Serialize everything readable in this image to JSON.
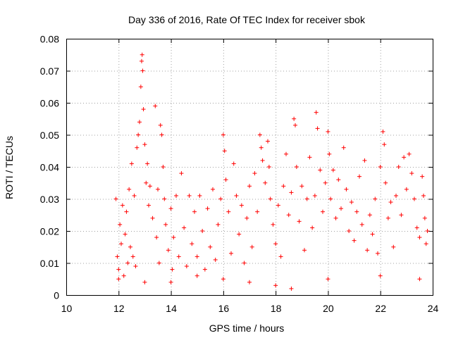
{
  "chart_data": {
    "type": "scatter",
    "title": "Day 336 of 2016, Rate Of TEC Index for receiver sbok",
    "xlabel": "GPS time / hours",
    "ylabel": "ROTI / TECUs",
    "xlim": [
      10,
      24
    ],
    "ylim": [
      0,
      0.08
    ],
    "x_ticks": [
      "10",
      "12",
      "14",
      "16",
      "18",
      "20",
      "22",
      "24"
    ],
    "y_ticks": [
      "0",
      "0.01",
      "0.02",
      "0.03",
      "0.04",
      "0.05",
      "0.06",
      "0.07",
      "0.08"
    ],
    "grid": true,
    "marker": "+",
    "point_color": "#ff0000",
    "series": [
      {
        "points": [
          [
            11.9,
            0.03
          ],
          [
            11.95,
            0.012
          ],
          [
            12.0,
            0.008
          ],
          [
            12.05,
            0.022
          ],
          [
            12.1,
            0.016
          ],
          [
            12.15,
            0.028
          ],
          [
            12.2,
            0.006
          ],
          [
            12.25,
            0.019
          ],
          [
            12.3,
            0.026
          ],
          [
            12.35,
            0.01
          ],
          [
            12.4,
            0.033
          ],
          [
            12.45,
            0.015
          ],
          [
            12.5,
            0.041
          ],
          [
            12.55,
            0.012
          ],
          [
            12.6,
            0.031
          ],
          [
            12.65,
            0.009
          ],
          [
            12.7,
            0.046
          ],
          [
            12.75,
            0.05
          ],
          [
            12.8,
            0.054
          ],
          [
            12.85,
            0.065
          ],
          [
            12.88,
            0.073
          ],
          [
            12.9,
            0.075
          ],
          [
            12.92,
            0.07
          ],
          [
            12.95,
            0.058
          ],
          [
            13.0,
            0.047
          ],
          [
            13.05,
            0.035
          ],
          [
            13.1,
            0.041
          ],
          [
            13.15,
            0.028
          ],
          [
            13.2,
            0.034
          ],
          [
            13.3,
            0.024
          ],
          [
            13.4,
            0.059
          ],
          [
            13.45,
            0.018
          ],
          [
            13.5,
            0.033
          ],
          [
            13.55,
            0.01
          ],
          [
            13.6,
            0.053
          ],
          [
            13.65,
            0.05
          ],
          [
            13.7,
            0.04
          ],
          [
            13.75,
            0.03
          ],
          [
            13.8,
            0.022
          ],
          [
            13.9,
            0.014
          ],
          [
            14.0,
            0.027
          ],
          [
            14.05,
            0.008
          ],
          [
            14.1,
            0.018
          ],
          [
            14.2,
            0.031
          ],
          [
            14.3,
            0.012
          ],
          [
            14.4,
            0.038
          ],
          [
            14.5,
            0.021
          ],
          [
            14.6,
            0.009
          ],
          [
            14.7,
            0.031
          ],
          [
            14.8,
            0.016
          ],
          [
            14.9,
            0.026
          ],
          [
            15.0,
            0.012
          ],
          [
            15.1,
            0.031
          ],
          [
            15.2,
            0.02
          ],
          [
            15.3,
            0.008
          ],
          [
            15.4,
            0.027
          ],
          [
            15.5,
            0.015
          ],
          [
            15.6,
            0.033
          ],
          [
            15.7,
            0.011
          ],
          [
            15.8,
            0.022
          ],
          [
            15.9,
            0.03
          ],
          [
            16.0,
            0.05
          ],
          [
            16.05,
            0.045
          ],
          [
            16.1,
            0.036
          ],
          [
            16.2,
            0.026
          ],
          [
            16.3,
            0.013
          ],
          [
            16.4,
            0.041
          ],
          [
            16.5,
            0.031
          ],
          [
            16.6,
            0.019
          ],
          [
            16.7,
            0.028
          ],
          [
            16.8,
            0.01
          ],
          [
            16.9,
            0.024
          ],
          [
            17.0,
            0.034
          ],
          [
            17.1,
            0.015
          ],
          [
            17.2,
            0.038
          ],
          [
            17.3,
            0.026
          ],
          [
            17.4,
            0.05
          ],
          [
            17.45,
            0.046
          ],
          [
            17.5,
            0.042
          ],
          [
            17.6,
            0.035
          ],
          [
            17.7,
            0.048
          ],
          [
            17.75,
            0.04
          ],
          [
            17.8,
            0.03
          ],
          [
            17.9,
            0.022
          ],
          [
            18.0,
            0.016
          ],
          [
            18.1,
            0.028
          ],
          [
            18.2,
            0.012
          ],
          [
            18.3,
            0.034
          ],
          [
            18.4,
            0.044
          ],
          [
            18.5,
            0.025
          ],
          [
            18.6,
            0.032
          ],
          [
            18.7,
            0.055
          ],
          [
            18.75,
            0.053
          ],
          [
            18.8,
            0.04
          ],
          [
            18.9,
            0.023
          ],
          [
            19.0,
            0.034
          ],
          [
            19.1,
            0.014
          ],
          [
            19.2,
            0.03
          ],
          [
            19.3,
            0.043
          ],
          [
            19.4,
            0.021
          ],
          [
            19.5,
            0.031
          ],
          [
            19.55,
            0.057
          ],
          [
            19.6,
            0.052
          ],
          [
            19.7,
            0.039
          ],
          [
            19.8,
            0.026
          ],
          [
            19.9,
            0.035
          ],
          [
            20.0,
            0.051
          ],
          [
            20.05,
            0.044
          ],
          [
            20.1,
            0.03
          ],
          [
            20.2,
            0.039
          ],
          [
            20.3,
            0.024
          ],
          [
            20.4,
            0.036
          ],
          [
            20.5,
            0.027
          ],
          [
            20.6,
            0.046
          ],
          [
            20.7,
            0.033
          ],
          [
            20.8,
            0.02
          ],
          [
            20.9,
            0.029
          ],
          [
            21.0,
            0.017
          ],
          [
            21.1,
            0.026
          ],
          [
            21.2,
            0.037
          ],
          [
            21.3,
            0.022
          ],
          [
            21.4,
            0.042
          ],
          [
            21.5,
            0.014
          ],
          [
            21.6,
            0.025
          ],
          [
            21.7,
            0.019
          ],
          [
            21.8,
            0.03
          ],
          [
            21.9,
            0.013
          ],
          [
            22.0,
            0.04
          ],
          [
            22.1,
            0.051
          ],
          [
            22.15,
            0.047
          ],
          [
            22.2,
            0.035
          ],
          [
            22.3,
            0.024
          ],
          [
            22.4,
            0.029
          ],
          [
            22.5,
            0.015
          ],
          [
            22.6,
            0.031
          ],
          [
            22.7,
            0.04
          ],
          [
            22.8,
            0.025
          ],
          [
            22.9,
            0.043
          ],
          [
            23.0,
            0.033
          ],
          [
            23.1,
            0.044
          ],
          [
            23.2,
            0.038
          ],
          [
            23.3,
            0.03
          ],
          [
            23.4,
            0.021
          ],
          [
            23.5,
            0.018
          ],
          [
            23.6,
            0.037
          ],
          [
            23.65,
            0.031
          ],
          [
            23.7,
            0.024
          ],
          [
            23.75,
            0.016
          ],
          [
            23.8,
            0.02
          ],
          [
            12.0,
            0.005
          ],
          [
            14.0,
            0.004
          ],
          [
            16.0,
            0.005
          ],
          [
            18.0,
            0.003
          ],
          [
            18.6,
            0.002
          ],
          [
            20.0,
            0.005
          ],
          [
            22.0,
            0.006
          ],
          [
            23.5,
            0.005
          ],
          [
            13.0,
            0.004
          ],
          [
            15.0,
            0.006
          ],
          [
            17.0,
            0.004
          ]
        ]
      }
    ]
  }
}
